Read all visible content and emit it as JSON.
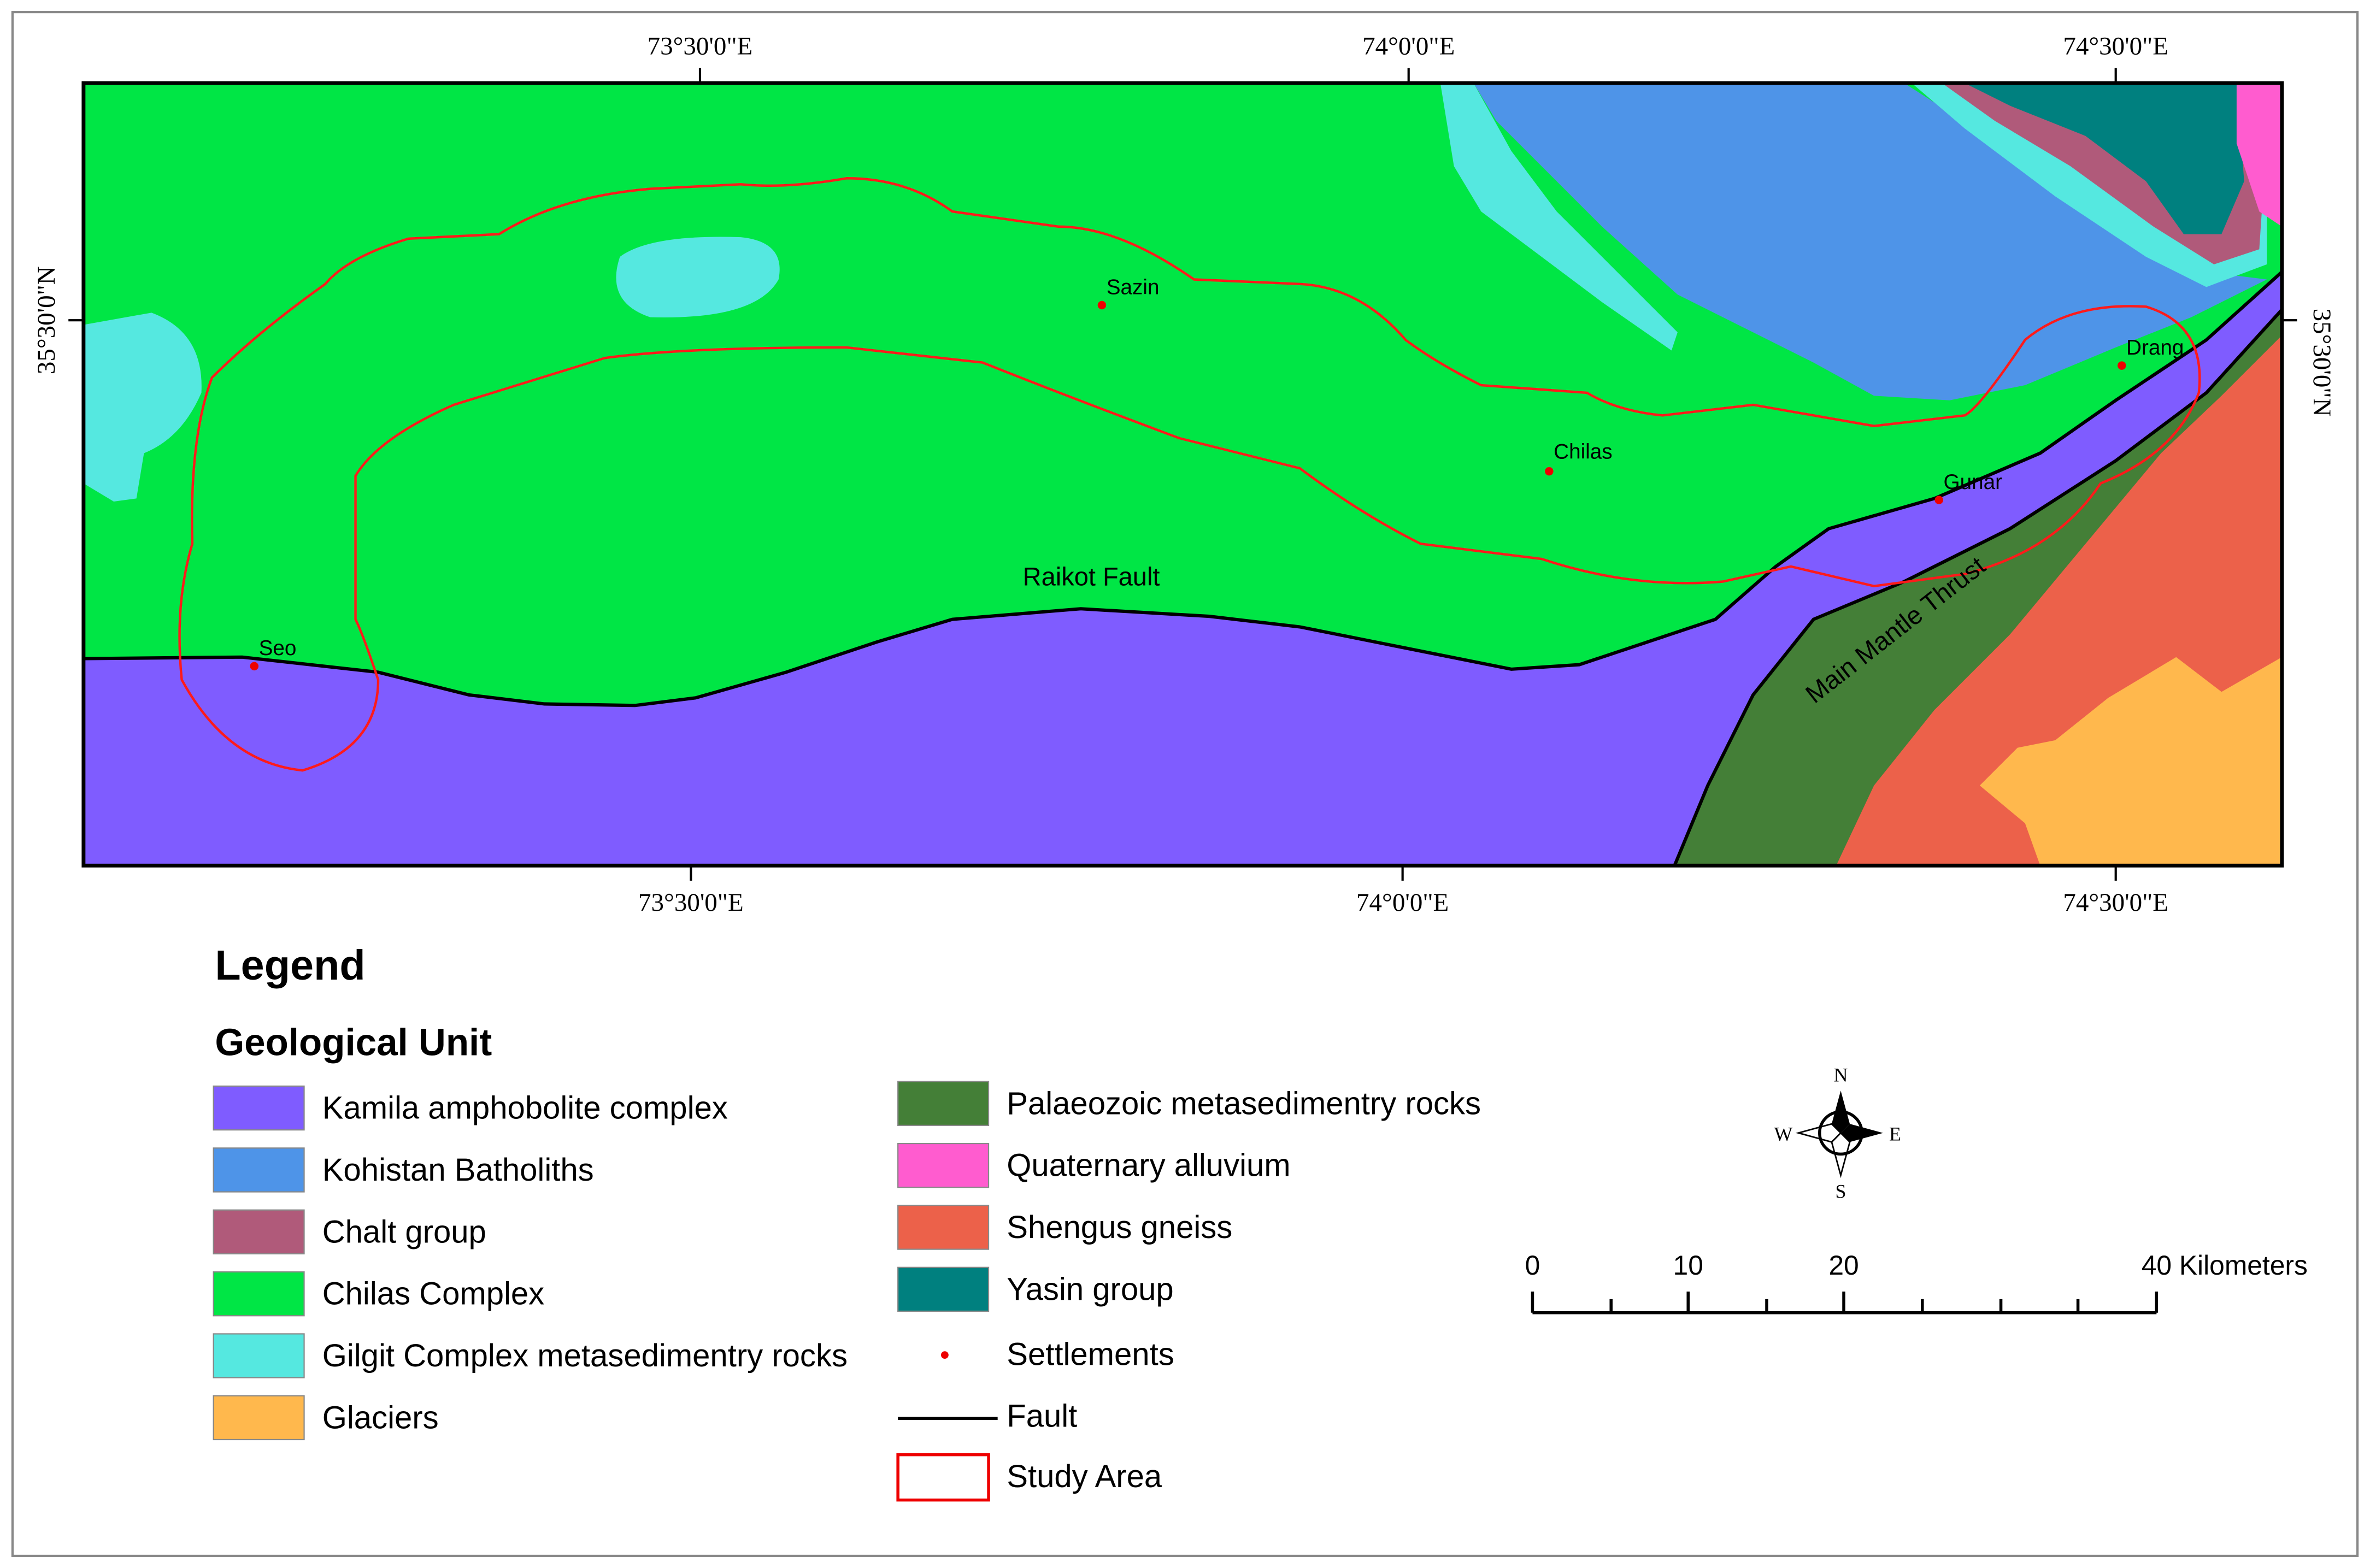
{
  "map": {
    "top_labels": [
      "73°30'0\"E",
      "74°0'0\"E",
      "74°30'0\"E"
    ],
    "bottom_labels": [
      "73°30'0\"E",
      "74°0'0\"E",
      "74°30'0\"E"
    ],
    "left_label": "35°30'0\"N",
    "right_label": "35°30'0\"N",
    "settlements": [
      "Sazin",
      "Chilas",
      "Gunar",
      "Drang",
      "Seo"
    ],
    "faults": [
      "Raikot Fault",
      "Main Mantle Thrust"
    ]
  },
  "legend": {
    "title": "Legend",
    "subtitle": "Geological Unit",
    "items": [
      {
        "label": "Kamila amphobolite complex",
        "color": "#7f5cff"
      },
      {
        "label": "Kohistan Batholiths",
        "color": "#4e94e8"
      },
      {
        "label": "Chalt group",
        "color": "#b05a7a"
      },
      {
        "label": "Chilas Complex",
        "color": "#00e645"
      },
      {
        "label": "Gilgit Complex metasedimentry rocks",
        "color": "#55e8e0"
      },
      {
        "label": "Glaciers",
        "color": "#ffb84d"
      },
      {
        "label": "Palaeozoic metasedimentry rocks",
        "color": "#447f37"
      },
      {
        "label": "Quaternary alluvium",
        "color": "#ff5ccf"
      },
      {
        "label": "Shengus gneiss",
        "color": "#ec614a"
      },
      {
        "label": "Yasin group",
        "color": "#00807f"
      }
    ],
    "symbols": [
      "Settlements",
      "Fault",
      "Study Area"
    ]
  },
  "scale_bar": {
    "labels": [
      "0",
      "10",
      "20",
      "40 Kilometers"
    ]
  },
  "compass": [
    "N",
    "E",
    "S",
    "W"
  ]
}
